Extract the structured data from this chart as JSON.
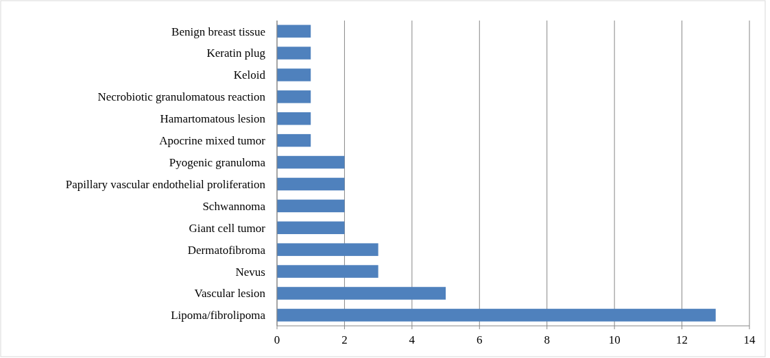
{
  "chart_data": {
    "type": "bar",
    "orientation": "horizontal",
    "categories": [
      "Benign breast tissue",
      "Keratin plug",
      "Keloid",
      "Necrobiotic granulomatous reaction",
      "Hamartomatous lesion",
      "Apocrine mixed tumor",
      "Pyogenic granuloma",
      "Papillary vascular endothelial proliferation",
      "Schwannoma",
      "Giant cell tumor",
      "Dermatofibroma",
      "Nevus",
      "Vascular lesion",
      "Lipoma/fibrolipoma"
    ],
    "values": [
      1,
      1,
      1,
      1,
      1,
      1,
      2,
      2,
      2,
      2,
      3,
      3,
      5,
      13
    ],
    "color": "#4f81bd",
    "xlim": [
      0,
      14
    ],
    "xticks": [
      0,
      2,
      4,
      6,
      8,
      10,
      12,
      14
    ],
    "grid": "x"
  }
}
